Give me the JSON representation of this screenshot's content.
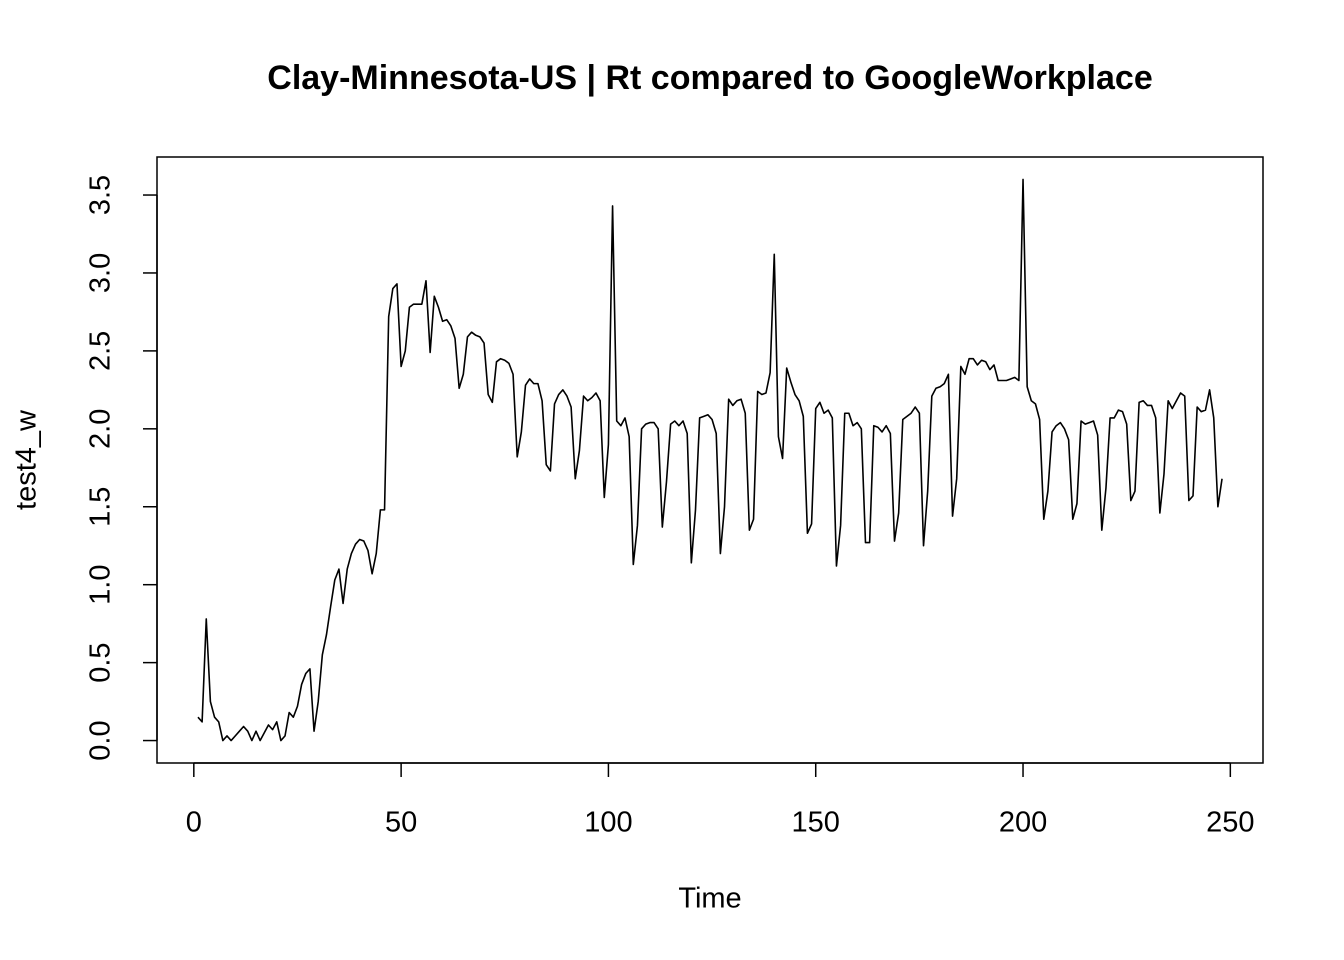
{
  "chart_data": {
    "type": "line",
    "title": "Clay-Minnesota-US | Rt compared to GoogleWorkplace",
    "x_label": "Time",
    "y_label": "test4_w",
    "x": [
      1,
      2,
      3,
      4,
      5,
      6,
      7,
      8,
      9,
      10,
      11,
      12,
      13,
      14,
      15,
      16,
      17,
      18,
      19,
      20,
      21,
      22,
      23,
      24,
      25,
      26,
      27,
      28,
      29,
      30,
      31,
      32,
      33,
      34,
      35,
      36,
      37,
      38,
      39,
      40,
      41,
      42,
      43,
      44,
      45,
      46,
      47,
      48,
      49,
      50,
      51,
      52,
      53,
      54,
      55,
      56,
      57,
      58,
      59,
      60,
      61,
      62,
      63,
      64,
      65,
      66,
      67,
      68,
      69,
      70,
      71,
      72,
      73,
      74,
      75,
      76,
      77,
      78,
      79,
      80,
      81,
      82,
      83,
      84,
      85,
      86,
      87,
      88,
      89,
      90,
      91,
      92,
      93,
      94,
      95,
      96,
      97,
      98,
      99,
      100,
      101,
      102,
      103,
      104,
      105,
      106,
      107,
      108,
      109,
      110,
      111,
      112,
      113,
      114,
      115,
      116,
      117,
      118,
      119,
      120,
      121,
      122,
      123,
      124,
      125,
      126,
      127,
      128,
      129,
      130,
      131,
      132,
      133,
      134,
      135,
      136,
      137,
      138,
      139,
      140,
      141,
      142,
      143,
      144,
      145,
      146,
      147,
      148,
      149,
      150,
      151,
      152,
      153,
      154,
      155,
      156,
      157,
      158,
      159,
      160,
      161,
      162,
      163,
      164,
      165,
      166,
      167,
      168,
      169,
      170,
      171,
      172,
      173,
      174,
      175,
      176,
      177,
      178,
      179,
      180,
      181,
      182,
      183,
      184,
      185,
      186,
      187,
      188,
      189,
      190,
      191,
      192,
      193,
      194,
      195,
      196,
      197,
      198,
      199,
      200,
      201,
      202,
      203,
      204,
      205,
      206,
      207,
      208,
      209,
      210,
      211,
      212,
      213,
      214,
      215,
      216,
      217,
      218,
      219,
      220,
      221,
      222,
      223,
      224,
      225,
      226,
      227,
      228,
      229,
      230,
      231,
      232,
      233,
      234,
      235,
      236,
      237,
      238,
      239,
      240,
      241,
      242,
      243,
      244,
      245,
      246,
      247,
      248
    ],
    "values": [
      0.15,
      0.12,
      0.78,
      0.25,
      0.15,
      0.12,
      0.0,
      0.03,
      0.0,
      0.03,
      0.06,
      0.09,
      0.06,
      0.0,
      0.06,
      0.0,
      0.05,
      0.1,
      0.07,
      0.12,
      0.0,
      0.03,
      0.18,
      0.15,
      0.22,
      0.36,
      0.43,
      0.46,
      0.06,
      0.25,
      0.55,
      0.68,
      0.86,
      1.03,
      1.1,
      0.88,
      1.1,
      1.2,
      1.26,
      1.29,
      1.28,
      1.22,
      1.07,
      1.2,
      1.48,
      1.48,
      2.72,
      2.9,
      2.93,
      2.4,
      2.5,
      2.78,
      2.8,
      2.8,
      2.8,
      2.95,
      2.49,
      2.85,
      2.78,
      2.69,
      2.7,
      2.66,
      2.58,
      2.26,
      2.35,
      2.59,
      2.62,
      2.6,
      2.59,
      2.55,
      2.22,
      2.17,
      2.43,
      2.45,
      2.44,
      2.42,
      2.35,
      1.82,
      1.98,
      2.28,
      2.32,
      2.29,
      2.29,
      2.18,
      1.77,
      1.73,
      2.16,
      2.22,
      2.25,
      2.21,
      2.14,
      1.68,
      1.86,
      2.21,
      2.18,
      2.2,
      2.23,
      2.18,
      1.56,
      1.9,
      3.43,
      2.05,
      2.02,
      2.07,
      1.95,
      1.13,
      1.38,
      2.0,
      2.03,
      2.04,
      2.04,
      2.0,
      1.37,
      1.66,
      2.03,
      2.05,
      2.02,
      2.05,
      1.97,
      1.14,
      1.48,
      2.07,
      2.08,
      2.09,
      2.06,
      1.97,
      1.2,
      1.5,
      2.19,
      2.15,
      2.18,
      2.19,
      2.1,
      1.35,
      1.42,
      2.24,
      2.22,
      2.23,
      2.36,
      3.12,
      1.95,
      1.81,
      2.39,
      2.3,
      2.22,
      2.18,
      2.08,
      1.33,
      1.39,
      2.13,
      2.17,
      2.1,
      2.12,
      2.07,
      1.12,
      1.38,
      2.1,
      2.1,
      2.02,
      2.04,
      2.0,
      1.27,
      1.27,
      2.02,
      2.01,
      1.98,
      2.02,
      1.97,
      1.28,
      1.46,
      2.06,
      2.08,
      2.1,
      2.14,
      2.1,
      1.25,
      1.6,
      2.21,
      2.26,
      2.27,
      2.29,
      2.35,
      1.44,
      1.68,
      2.4,
      2.35,
      2.45,
      2.45,
      2.41,
      2.44,
      2.43,
      2.38,
      2.41,
      2.31,
      2.31,
      2.31,
      2.32,
      2.33,
      2.31,
      3.6,
      2.27,
      2.18,
      2.16,
      2.06,
      1.42,
      1.6,
      1.98,
      2.02,
      2.04,
      2.0,
      1.93,
      1.42,
      1.52,
      2.05,
      2.03,
      2.04,
      2.05,
      1.96,
      1.35,
      1.62,
      2.07,
      2.07,
      2.12,
      2.11,
      2.03,
      1.54,
      1.6,
      2.17,
      2.18,
      2.15,
      2.15,
      2.07,
      1.46,
      1.71,
      2.18,
      2.13,
      2.18,
      2.23,
      2.21,
      1.54,
      1.57,
      2.14,
      2.11,
      2.12,
      2.25,
      2.07,
      1.5,
      1.68
    ],
    "color": "#000000",
    "xlim": [
      -8.88,
      257.88
    ],
    "ylim": [
      -0.144,
      3.744
    ],
    "xticks": [
      0,
      50,
      100,
      150,
      200,
      250
    ],
    "yticks": [
      {
        "value": 0,
        "label": "0.0"
      },
      0.5,
      {
        "value": 1,
        "label": "1.0"
      },
      1.5,
      {
        "value": 2,
        "label": "2.0"
      },
      2.5,
      {
        "value": 3,
        "label": "3.0"
      },
      3.5
    ]
  }
}
